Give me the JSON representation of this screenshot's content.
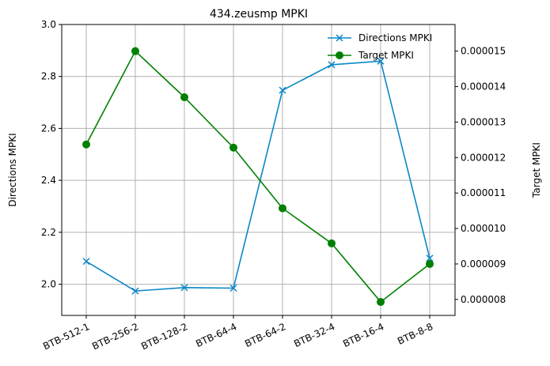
{
  "chart_data": {
    "type": "line",
    "title": "434.zeusmp MPKI",
    "categories": [
      "BTB-512-1",
      "BTB-256-2",
      "BTB-128-2",
      "BTB-64-4",
      "BTB-64-2",
      "BTB-32-4",
      "BTB-16-4",
      "BTB-8-8"
    ],
    "y_left": {
      "label": "Directions MPKI",
      "range": [
        1.88,
        3.0
      ],
      "ticks": [
        2.0,
        2.2,
        2.4,
        2.6,
        2.8,
        3.0
      ],
      "tick_labels": [
        "2.0",
        "2.2",
        "2.4",
        "2.6",
        "2.8",
        "3.0"
      ]
    },
    "y_right": {
      "label": "Target MPKI",
      "range": [
        7.55e-06,
        1.575e-05
      ],
      "ticks": [
        8e-06,
        9e-06,
        1e-05,
        1.1e-05,
        1.2e-05,
        1.3e-05,
        1.4e-05,
        1.5e-05
      ],
      "tick_labels": [
        "0.000008",
        "0.000009",
        "0.000010",
        "0.000011",
        "0.000012",
        "0.000013",
        "0.000014",
        "0.000015"
      ]
    },
    "series": [
      {
        "name": "Directions MPKI",
        "axis": "left",
        "color": "#0a87c8",
        "marker": "x",
        "values": [
          2.088,
          1.974,
          1.987,
          1.985,
          2.747,
          2.845,
          2.859,
          2.1
        ]
      },
      {
        "name": "Target MPKI",
        "axis": "right",
        "color": "#008000",
        "marker": "circle",
        "values": [
          1.237e-05,
          1.5e-05,
          1.37e-05,
          1.228e-05,
          1.057e-05,
          9.58e-06,
          7.93e-06,
          9e-06
        ]
      }
    ],
    "grid": true,
    "legend_position": "top-right",
    "x_tick_rotation_deg": 25
  }
}
